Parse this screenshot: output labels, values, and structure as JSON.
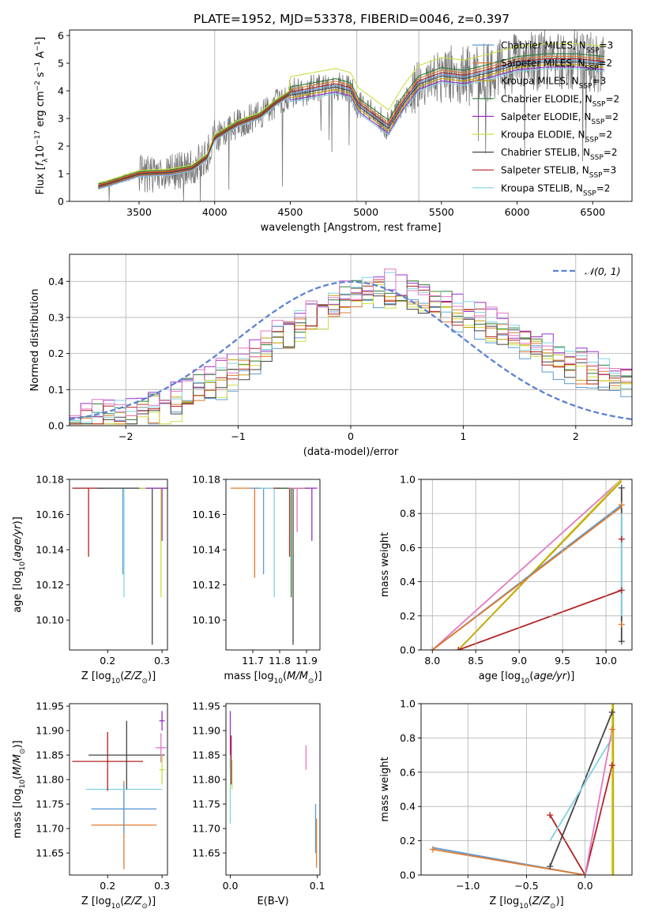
{
  "figure": {
    "title": "PLATE=1952, MJD=53378, FIBERID=0046, z=0.397"
  },
  "chart_data": [
    {
      "id": "spectrum",
      "type": "line",
      "xlabel": "wavelength [Angstrom, rest frame]",
      "ylabel_parts": [
        "Flux [",
        "f",
        "λ",
        "10",
        "−17",
        " erg cm",
        "−2",
        " s",
        "−1",
        " A",
        "−1",
        "]"
      ],
      "xlim": [
        3040,
        6760
      ],
      "ylim": [
        0,
        6.2
      ],
      "xticks": [
        3500,
        4000,
        4500,
        5000,
        5500,
        6000,
        6500
      ],
      "yticks": [
        0,
        1,
        2,
        3,
        4,
        5,
        6
      ],
      "vlines": [
        4000,
        4940,
        5350
      ],
      "data_start": 3230,
      "data_end": 6580,
      "continuum_anchors": [
        [
          3230,
          0.55
        ],
        [
          3300,
          0.65
        ],
        [
          3500,
          1.0
        ],
        [
          3700,
          1.05
        ],
        [
          3850,
          1.2
        ],
        [
          3950,
          1.6
        ],
        [
          4000,
          2.3
        ],
        [
          4150,
          2.8
        ],
        [
          4300,
          3.1
        ],
        [
          4400,
          3.55
        ],
        [
          4500,
          3.9
        ],
        [
          4650,
          4.05
        ],
        [
          4800,
          4.2
        ],
        [
          4900,
          4.05
        ],
        [
          4950,
          3.5
        ],
        [
          5050,
          3.1
        ],
        [
          5150,
          2.7
        ],
        [
          5250,
          3.6
        ],
        [
          5350,
          4.3
        ],
        [
          5500,
          4.6
        ],
        [
          5650,
          4.5
        ],
        [
          5800,
          4.7
        ],
        [
          6000,
          5.0
        ],
        [
          6200,
          5.1
        ],
        [
          6400,
          5.1
        ],
        [
          6580,
          5.0
        ]
      ],
      "legend": {
        "location": "upper right",
        "entries": [
          {
            "model": "Chabrier MILES, N",
            "n": "3",
            "color": "#5b9bd5"
          },
          {
            "model": "Salpeter MILES, N",
            "n": "2",
            "color": "#e07a2e"
          },
          {
            "model": "Kroupa MILES, N",
            "n": "3",
            "color": "#c8a100"
          },
          {
            "model": "Chabrier ELODIE, N",
            "n": "2",
            "color": "#2e7d32"
          },
          {
            "model": "Salpeter ELODIE, N",
            "n": "2",
            "color": "#9b30c8"
          },
          {
            "model": "Kroupa ELODIE, N",
            "n": "2",
            "color": "#cbe043"
          },
          {
            "model": "Chabrier STELIB, N",
            "n": "2",
            "color": "#444444"
          },
          {
            "model": "Salpeter STELIB, N",
            "n": "3",
            "color": "#b22222"
          },
          {
            "model": "Kroupa STELIB, N",
            "n": "2",
            "color": "#7fd3e0"
          }
        ],
        "subscript": "SSP"
      }
    },
    {
      "id": "residuals",
      "type": "line",
      "xlabel": "(data-model)/error",
      "ylabel": "Normed distribution",
      "xlim": [
        -2.5,
        2.5
      ],
      "ylim": [
        0,
        0.475
      ],
      "xticks": [
        -2,
        -1,
        0,
        1,
        2
      ],
      "xtick_labels": [
        "−2",
        "−1",
        "0",
        "1",
        "2"
      ],
      "yticks": [
        0.0,
        0.1,
        0.2,
        0.3,
        0.4
      ],
      "grid": true,
      "gauss_label": "𝒩(0, 1)",
      "hist_color_order": [
        6,
        7,
        4,
        5,
        8,
        2,
        1,
        0,
        3
      ],
      "hist_colors": [
        "#5b9bd5",
        "#e07a2e",
        "#c8a100",
        "#2e7d32",
        "#9b30c8",
        "#cbe043",
        "#444444",
        "#b22222",
        "#7fd3e0",
        "#e377c2"
      ],
      "hist_bin_edges_start": -2.5,
      "hist_bin_width": 0.1,
      "hist_envelope": [
        0.01,
        0.012,
        0.015,
        0.02,
        0.025,
        0.03,
        0.04,
        0.05,
        0.06,
        0.07,
        0.085,
        0.1,
        0.115,
        0.13,
        0.15,
        0.17,
        0.19,
        0.21,
        0.235,
        0.26,
        0.28,
        0.3,
        0.32,
        0.34,
        0.345,
        0.36,
        0.37,
        0.38,
        0.38,
        0.37,
        0.36,
        0.35,
        0.34,
        0.33,
        0.31,
        0.3,
        0.29,
        0.275,
        0.26,
        0.25,
        0.23,
        0.215,
        0.2,
        0.185,
        0.17,
        0.16,
        0.15,
        0.14,
        0.13,
        0.12,
        0.11
      ]
    },
    {
      "id": "age-vs-Z",
      "type": "scatter",
      "xlabel_parts": [
        "Z [log",
        "10",
        "(Z/Z",
        "⊙",
        ")]"
      ],
      "ylabel_parts": [
        "age  [log",
        "10",
        "(age/yr)]"
      ],
      "xlim": [
        0.13,
        0.31
      ],
      "ylim": [
        10.083,
        10.18
      ],
      "xticks": [
        0.2,
        0.3
      ],
      "yticks": [
        10.1,
        10.12,
        10.14,
        10.16,
        10.18
      ],
      "points": [
        {
          "x": 0.228,
          "y": 10.175,
          "xerr": 0.09,
          "ylo": 10.126,
          "color": "#5b9bd5"
        },
        {
          "x": 0.23,
          "y": 10.175,
          "xerr": 0.08,
          "ylo": 10.113,
          "color": "#7fd3e0"
        },
        {
          "x": 0.165,
          "y": 10.175,
          "xerr": 0.03,
          "ylo": 10.136,
          "color": "#b22222"
        },
        {
          "x": 0.282,
          "y": 10.175,
          "xerr": 0.1,
          "ylo": 10.086,
          "color": "#444444"
        },
        {
          "x": 0.298,
          "y": 10.175,
          "xerr": 0.04,
          "ylo": 10.113,
          "color": "#cbe043"
        },
        {
          "x": 0.3,
          "y": 10.175,
          "xerr": 0.03,
          "ylo": 10.145,
          "color": "#9b30c8"
        }
      ]
    },
    {
      "id": "age-vs-mass",
      "type": "scatter",
      "xlabel_parts": [
        "mass [log",
        "10",
        "(M/M",
        "⊙",
        ")]"
      ],
      "xlim": [
        11.6,
        11.95
      ],
      "ylim": [
        10.083,
        10.18
      ],
      "xticks": [
        11.7,
        11.8,
        11.9
      ],
      "yticks": [
        10.1,
        10.12,
        10.14,
        10.16,
        10.18
      ],
      "points": [
        {
          "x": 11.707,
          "y": 10.175,
          "xerr": 0.09,
          "ylo": 10.124,
          "color": "#e07a2e"
        },
        {
          "x": 11.74,
          "y": 10.175,
          "xerr": 0.05,
          "ylo": 10.126,
          "color": "#5b9bd5"
        },
        {
          "x": 11.78,
          "y": 10.175,
          "xerr": 0.05,
          "ylo": 10.113,
          "color": "#7fd3e0"
        },
        {
          "x": 11.837,
          "y": 10.175,
          "xerr": 0.06,
          "ylo": 10.136,
          "color": "#b22222"
        },
        {
          "x": 11.85,
          "y": 10.175,
          "xerr": 0.06,
          "ylo": 10.086,
          "color": "#444444"
        },
        {
          "x": 11.843,
          "y": 10.175,
          "xerr": 0.04,
          "ylo": 10.113,
          "color": "#2e7d32"
        },
        {
          "x": 11.865,
          "y": 10.175,
          "xerr": 0.03,
          "ylo": 10.15,
          "color": "#e377c2"
        },
        {
          "x": 11.92,
          "y": 10.175,
          "xerr": 0.02,
          "ylo": 10.145,
          "color": "#9b30c8"
        }
      ]
    },
    {
      "id": "weight-vs-age",
      "type": "line",
      "xlabel_parts": [
        "age  [log",
        "10",
        "(age/yr)]"
      ],
      "ylabel": "mass weight",
      "xlim": [
        7.87,
        10.3
      ],
      "ylim": [
        0,
        1.0
      ],
      "xticks": [
        8.0,
        8.5,
        9.0,
        9.5,
        10.0
      ],
      "yticks": [
        0.0,
        0.2,
        0.4,
        0.6,
        0.8,
        1.0
      ],
      "grid": true,
      "series": [
        {
          "color": "#e377c2",
          "pts": [
            [
              8.0,
              0.0
            ],
            [
              10.18,
              1.0
            ]
          ]
        },
        {
          "color": "#cbe043",
          "pts": [
            [
              8.3,
              0.0
            ],
            [
              10.18,
              1.0
            ]
          ]
        },
        {
          "color": "#c8a100",
          "pts": [
            [
              8.3,
              0.0
            ],
            [
              10.18,
              0.99
            ]
          ]
        },
        {
          "color": "#5b9bd5",
          "pts": [
            [
              8.0,
              0.0
            ],
            [
              10.18,
              0.85
            ]
          ]
        },
        {
          "color": "#e07a2e",
          "pts": [
            [
              8.0,
              0.0
            ],
            [
              10.18,
              0.84
            ]
          ]
        },
        {
          "color": "#b22222",
          "pts": [
            [
              8.3,
              0.0
            ],
            [
              10.18,
              0.35
            ]
          ]
        },
        {
          "color": "#444444",
          "pts": [
            [
              10.18,
              0.05
            ],
            [
              10.18,
              0.95
            ]
          ]
        },
        {
          "color": "#7fd3e0",
          "pts": [
            [
              10.18,
              0.2
            ],
            [
              10.18,
              0.8
            ]
          ]
        }
      ],
      "markers": [
        {
          "x": 10.18,
          "y": 0.95,
          "color": "#444444"
        },
        {
          "x": 10.18,
          "y": 0.85,
          "color": "#e07a2e"
        },
        {
          "x": 10.18,
          "y": 0.65,
          "color": "#b22222"
        },
        {
          "x": 10.18,
          "y": 0.35,
          "color": "#b22222"
        },
        {
          "x": 10.18,
          "y": 0.15,
          "color": "#e07a2e"
        },
        {
          "x": 10.18,
          "y": 0.05,
          "color": "#444444"
        },
        {
          "x": 8.0,
          "y": 0.0,
          "color": "#e07a2e"
        },
        {
          "x": 8.3,
          "y": 0.0,
          "color": "#b22222"
        }
      ]
    },
    {
      "id": "mass-vs-Z",
      "type": "scatter",
      "xlabel_parts": [
        "Z [log",
        "10",
        "(Z/Z",
        "⊙",
        ")]"
      ],
      "ylabel_parts": [
        "mass [log",
        "10",
        "(M/M",
        "⊙",
        ")]"
      ],
      "xlim": [
        0.13,
        0.31
      ],
      "ylim": [
        11.605,
        11.955
      ],
      "xticks": [
        0.2,
        0.3
      ],
      "yticks": [
        11.65,
        11.7,
        11.75,
        11.8,
        11.85,
        11.9,
        11.95
      ],
      "points": [
        {
          "x": 0.23,
          "y": 11.707,
          "xerr": 0.06,
          "yerr": 0.09,
          "color": "#e07a2e"
        },
        {
          "x": 0.23,
          "y": 11.74,
          "xerr": 0.06,
          "yerr": 0.05,
          "color": "#5b9bd5"
        },
        {
          "x": 0.23,
          "y": 11.78,
          "xerr": 0.07,
          "yerr": 0.0,
          "color": "#7fd3e0"
        },
        {
          "x": 0.2,
          "y": 11.837,
          "xerr": 0.065,
          "yerr": 0.06,
          "color": "#b22222"
        },
        {
          "x": 0.235,
          "y": 11.85,
          "xerr": 0.07,
          "yerr": 0.07,
          "color": "#444444"
        },
        {
          "x": 0.298,
          "y": 11.865,
          "xerr": 0.01,
          "yerr": 0.03,
          "color": "#e377c2"
        },
        {
          "x": 0.3,
          "y": 11.92,
          "xerr": 0.005,
          "yerr": 0.02,
          "color": "#9b30c8"
        },
        {
          "x": 0.3,
          "y": 11.82,
          "xerr": 0.005,
          "yerr": 0.03,
          "color": "#cbe043"
        }
      ]
    },
    {
      "id": "mass-vs-ebv",
      "type": "scatter",
      "xlabel": "E(B-V)",
      "xlim": [
        -0.005,
        0.103
      ],
      "ylim": [
        11.605,
        11.955
      ],
      "xticks": [
        0.0,
        0.1
      ],
      "xtick_labels": [
        "0.0",
        "0.1"
      ],
      "yticks": [
        11.65,
        11.7,
        11.75,
        11.8,
        11.85,
        11.9,
        11.95
      ],
      "points": [
        {
          "x": 0.0,
          "y": 11.88,
          "yerr": 0.06,
          "color": "#9b30c8"
        },
        {
          "x": 0.002,
          "y": 11.81,
          "yerr": 0.03,
          "color": "#cbe043"
        },
        {
          "x": 0.0,
          "y": 11.78,
          "yerr": 0.07,
          "color": "#7fd3e0"
        },
        {
          "x": 0.001,
          "y": 11.84,
          "yerr": 0.05,
          "color": "#b22222"
        },
        {
          "x": 0.087,
          "y": 11.845,
          "yerr": 0.025,
          "color": "#e377c2"
        },
        {
          "x": 0.098,
          "y": 11.7,
          "yerr": 0.05,
          "color": "#5b9bd5"
        },
        {
          "x": 0.099,
          "y": 11.67,
          "yerr": 0.05,
          "color": "#e07a2e"
        }
      ]
    },
    {
      "id": "weight-vs-Z",
      "type": "line",
      "xlabel_parts": [
        "Z [log",
        "10",
        "(Z/Z",
        "⊙",
        ")]"
      ],
      "ylabel": "mass weight",
      "xlim": [
        -1.4,
        0.4
      ],
      "ylim": [
        0,
        1.0
      ],
      "xticks": [
        -1.0,
        -0.5,
        0.0
      ],
      "xtick_labels": [
        "−1.0",
        "−0.5",
        "0.0"
      ],
      "yticks": [
        0.0,
        0.2,
        0.4,
        0.6,
        0.8,
        1.0
      ],
      "grid": true,
      "series": [
        {
          "color": "#5b9bd5",
          "pts": [
            [
              -1.3,
              0.16
            ],
            [
              0.0,
              0.0
            ]
          ]
        },
        {
          "color": "#e07a2e",
          "pts": [
            [
              -1.3,
              0.15
            ],
            [
              0.0,
              0.0
            ]
          ]
        },
        {
          "color": "#b22222",
          "pts": [
            [
              -0.3,
              0.35
            ],
            [
              0.0,
              0.0
            ],
            [
              0.23,
              0.64
            ]
          ]
        },
        {
          "color": "#444444",
          "pts": [
            [
              -0.3,
              0.05
            ],
            [
              0.23,
              0.95
            ]
          ]
        },
        {
          "color": "#7fd3e0",
          "pts": [
            [
              -0.3,
              0.2
            ],
            [
              0.23,
              0.8
            ]
          ]
        },
        {
          "color": "#e377c2",
          "pts": [
            [
              0.0,
              0.0
            ],
            [
              0.23,
              0.85
            ]
          ]
        },
        {
          "color": "#cbe043",
          "pts": [
            [
              0.23,
              0.0
            ],
            [
              0.23,
              1.0
            ]
          ]
        },
        {
          "color": "#c8a100",
          "pts": [
            [
              0.24,
              0.0
            ],
            [
              0.24,
              1.0
            ]
          ]
        }
      ],
      "markers": [
        {
          "x": -1.3,
          "y": 0.15,
          "color": "#e07a2e"
        },
        {
          "x": -0.3,
          "y": 0.35,
          "color": "#b22222"
        },
        {
          "x": -0.3,
          "y": 0.05,
          "color": "#444444"
        },
        {
          "x": 0.23,
          "y": 0.95,
          "color": "#444444"
        },
        {
          "x": 0.23,
          "y": 0.64,
          "color": "#b22222"
        },
        {
          "x": 0.23,
          "y": 0.85,
          "color": "#e07a2e"
        }
      ]
    }
  ]
}
